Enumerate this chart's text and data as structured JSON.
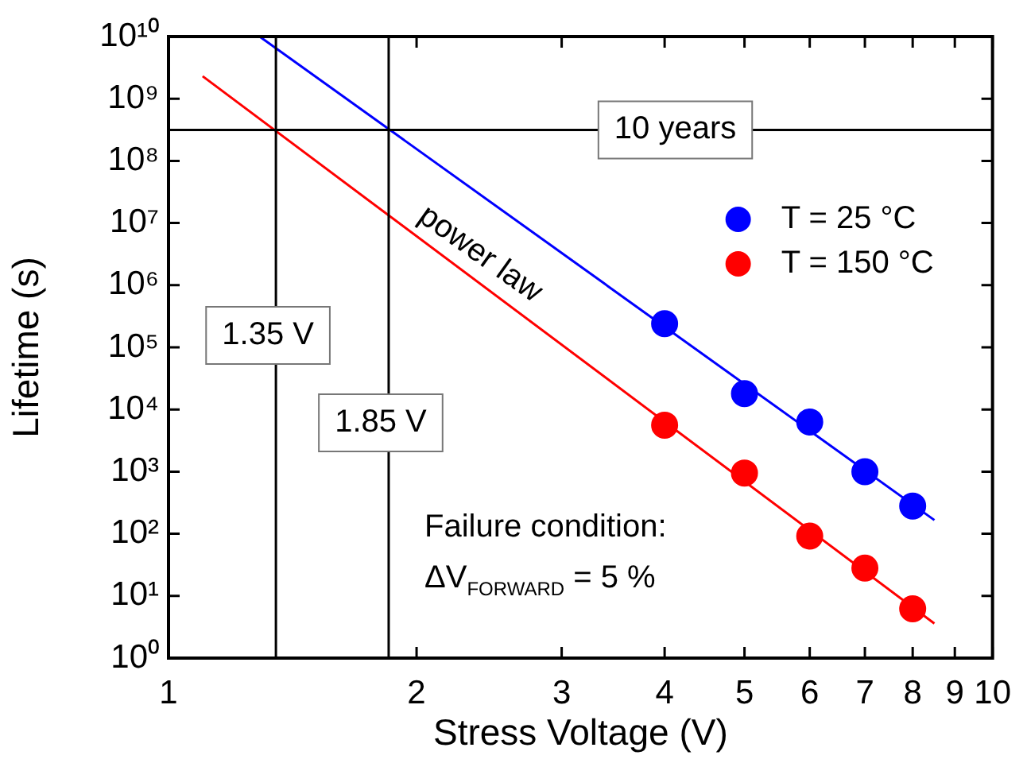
{
  "chart_data": {
    "type": "scatter",
    "xlabel": "Stress Voltage (V)",
    "ylabel": "Lifetime (s)",
    "log": "xy",
    "grid": false,
    "legend": "right",
    "marker": "circle",
    "xlim": [
      1,
      10
    ],
    "xticks": [
      1,
      2,
      3,
      4,
      5,
      6,
      7,
      8,
      9,
      10
    ],
    "ylim": [
      1,
      10000000000
    ],
    "yticks": [
      {
        "value": 1,
        "label": "10⁰"
      },
      {
        "value": 10,
        "label": "10¹"
      },
      {
        "value": 100,
        "label": "10²"
      },
      {
        "value": 1000,
        "label": "10³"
      },
      {
        "value": 10000,
        "label": "10⁴"
      },
      {
        "value": 100000,
        "label": "10⁵"
      },
      {
        "value": 1000000,
        "label": "10⁶"
      },
      {
        "value": 10000000,
        "label": "10⁷"
      },
      {
        "value": 100000000,
        "label": "10⁸"
      },
      {
        "value": 1000000000,
        "label": "10⁹"
      },
      {
        "value": 10000000000,
        "label": "10¹⁰"
      }
    ],
    "series": [
      {
        "name": "T = 25 °C",
        "color": "#0000ff",
        "x": [
          4,
          5,
          6,
          7,
          8
        ],
        "values": [
          240000,
          18000,
          6300,
          1000,
          280
        ]
      },
      {
        "name": "T = 150 °C",
        "color": "#ff0000",
        "x": [
          4,
          5,
          6,
          7,
          8
        ],
        "values": [
          5600,
          950,
          92,
          28,
          6.2
        ]
      },
      {
        "type": "line",
        "marker": "none",
        "color": "#0000ff",
        "x": [
          1.29,
          8.5
        ],
        "values": [
          10000000000,
          166
        ]
      },
      {
        "type": "line",
        "marker": "none",
        "color": "#ff0000",
        "x": [
          1.1,
          8.5
        ],
        "values": [
          2300000000,
          3.6
        ]
      }
    ],
    "ref_lines": [
      {
        "axis": "y",
        "value": 315000000,
        "label": "10 years",
        "color": "#000000"
      },
      {
        "axis": "x",
        "value": 1.35,
        "label": "1.35 V"
      },
      {
        "axis": "x",
        "value": 1.85,
        "label": "1.85 V"
      }
    ],
    "annotations": [
      "power law",
      "Failure condition:",
      "ΔV$_{FORWARD}$ = 5 %"
    ]
  }
}
